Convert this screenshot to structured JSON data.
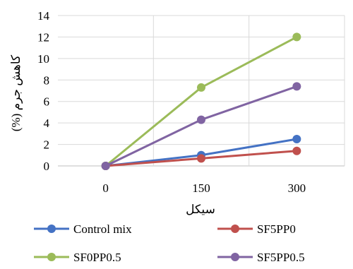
{
  "chart_data": {
    "type": "line",
    "title": "",
    "xlabel": "سیکل",
    "ylabel": "کاهش جرم (%)",
    "categories": [
      "0",
      "150",
      "300"
    ],
    "x": [
      0,
      150,
      300
    ],
    "ylim": [
      0,
      14
    ],
    "yticks": [
      0,
      2,
      4,
      6,
      8,
      10,
      12,
      14
    ],
    "grid": true,
    "legend_position": "bottom",
    "series": [
      {
        "name": "Control mix",
        "values": [
          0,
          1.0,
          2.5
        ],
        "color": "#4472C4"
      },
      {
        "name": "SF5PP0",
        "values": [
          0,
          0.7,
          1.4
        ],
        "color": "#C0504D"
      },
      {
        "name": "SF0PP0.5",
        "values": [
          0,
          7.3,
          12.0
        ],
        "color": "#9BBB59"
      },
      {
        "name": "SF5PP0.5",
        "values": [
          0,
          4.3,
          7.4
        ],
        "color": "#8064A2"
      }
    ]
  }
}
